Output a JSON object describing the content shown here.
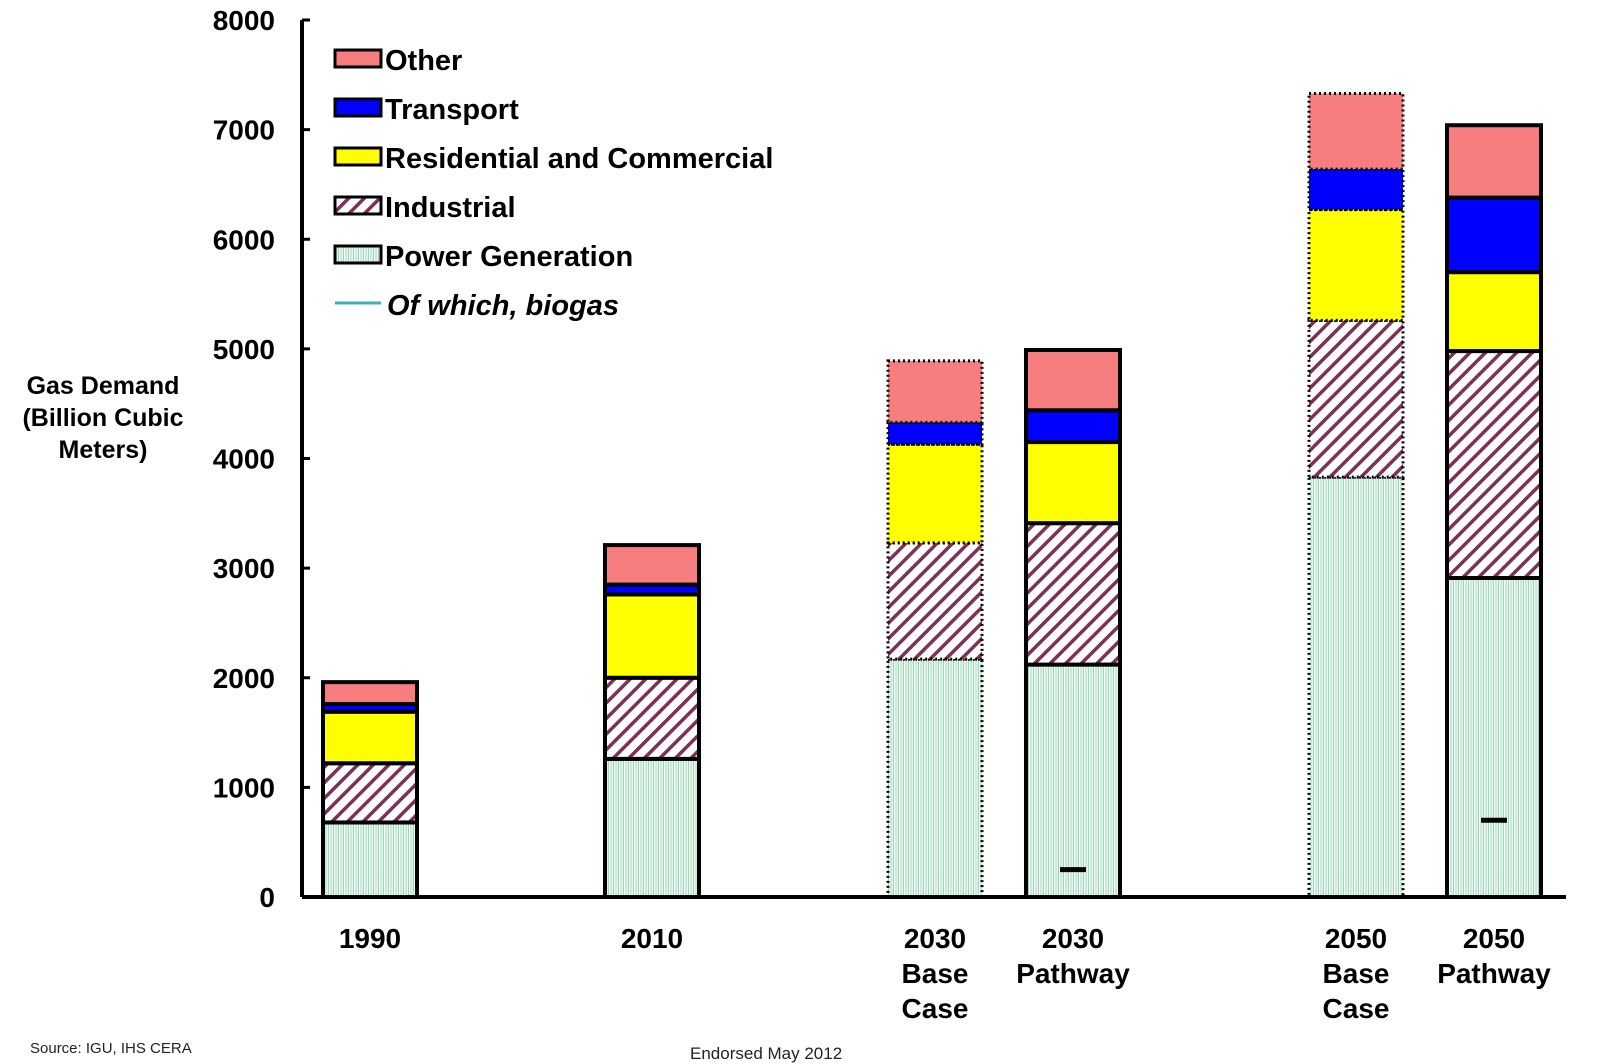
{
  "chart_data": {
    "type": "bar",
    "stacked": true,
    "ylabel": "Gas Demand (Billion Cubic Meters)",
    "ylim": [
      0,
      8000
    ],
    "yticks": [
      0,
      1000,
      2000,
      3000,
      4000,
      5000,
      6000,
      7000,
      8000
    ],
    "grid": false,
    "legend_position": "top-left",
    "categories": [
      "1990",
      "2010",
      "2030 Base Case",
      "2030 Pathway",
      "2050 Base Case",
      "2050 Pathway"
    ],
    "category_lines": [
      [
        "1990"
      ],
      [
        "2010"
      ],
      [
        "2030",
        "Base",
        "Case"
      ],
      [
        "2030",
        "Pathway"
      ],
      [
        "2050",
        "Base",
        "Case"
      ],
      [
        "2050",
        "Pathway"
      ]
    ],
    "series": [
      {
        "name": "Power Generation",
        "values": [
          680,
          1260,
          2170,
          2120,
          3830,
          2910
        ],
        "color": "#c9ecd9",
        "pattern": "vertical-lines"
      },
      {
        "name": "Industrial",
        "values": [
          540,
          740,
          1060,
          1290,
          1430,
          2070
        ],
        "color": "#7d3058",
        "pattern": "diagonal-hatch"
      },
      {
        "name": "Residential and Commercial",
        "values": [
          470,
          760,
          900,
          740,
          1010,
          720
        ],
        "color": "#ffff00"
      },
      {
        "name": "Transport",
        "values": [
          70,
          90,
          200,
          290,
          370,
          680
        ],
        "color": "#0000ff"
      },
      {
        "name": "Other",
        "values": [
          200,
          360,
          560,
          550,
          690,
          660
        ],
        "color": "#f77e7e"
      }
    ],
    "biogas": {
      "name": "Of which, biogas",
      "values": [
        null,
        null,
        null,
        250,
        null,
        700
      ],
      "color": "#3ab0b8"
    },
    "dotted_outline": [
      false,
      false,
      true,
      false,
      true,
      false
    ],
    "source": "Source: IGU, IHS CERA",
    "footer": "Endorsed                                  May 2012"
  }
}
